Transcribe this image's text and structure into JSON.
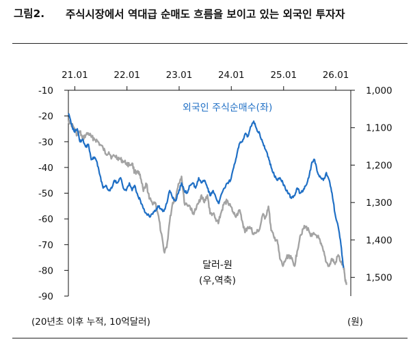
{
  "figure": {
    "label": "그림2.",
    "title": "주식시장에서 역대급 순매도 흐름을 보이고 있는 외국인 투자자",
    "left_axis_note": "(20년초 이후 누적, 10억달러)",
    "right_axis_note": "(원)"
  },
  "colors": {
    "foreign": "#1f6fc5",
    "usdkrw": "#a3a3a3",
    "axis": "#111111"
  },
  "chart_data": {
    "type": "line",
    "x_axis": {
      "position": "top",
      "tick_labels": [
        "21.01",
        "22.01",
        "23.01",
        "24.01",
        "25.01",
        "26.01"
      ],
      "range": [
        "2020-12",
        "2026-04"
      ]
    },
    "y_left": {
      "ticks": [
        -10,
        -20,
        -30,
        -40,
        -50,
        -60,
        -70,
        -80,
        -90
      ],
      "range": [
        -90,
        -10
      ]
    },
    "y_right": {
      "ticks": [
        "1,000",
        "1,100",
        "1,200",
        "1,300",
        "1,400",
        "1,500"
      ],
      "range": [
        1000,
        1550
      ],
      "inverted": true
    },
    "grid": false,
    "series": [
      {
        "name": "외국인 주식순매수(좌)",
        "axis": "left",
        "color": "#1f6fc5",
        "points": [
          [
            "2020-12-01",
            -19
          ],
          [
            "2020-12-20",
            -23
          ],
          [
            "2021-01-10",
            -26
          ],
          [
            "2021-02-01",
            -25
          ],
          [
            "2021-02-20",
            -30
          ],
          [
            "2021-03-10",
            -29
          ],
          [
            "2021-04-01",
            -32
          ],
          [
            "2021-04-20",
            -31
          ],
          [
            "2021-05-10",
            -37
          ],
          [
            "2021-06-01",
            -36
          ],
          [
            "2021-06-20",
            -38
          ],
          [
            "2021-07-10",
            -43
          ],
          [
            "2021-08-01",
            -48
          ],
          [
            "2021-08-20",
            -47
          ],
          [
            "2021-09-10",
            -49
          ],
          [
            "2021-10-01",
            -48
          ],
          [
            "2021-10-20",
            -45
          ],
          [
            "2021-11-10",
            -46
          ],
          [
            "2021-12-01",
            -44
          ],
          [
            "2021-12-20",
            -48
          ],
          [
            "2022-01-10",
            -49
          ],
          [
            "2022-02-01",
            -46
          ],
          [
            "2022-02-20",
            -49
          ],
          [
            "2022-03-10",
            -47
          ],
          [
            "2022-04-01",
            -51
          ],
          [
            "2022-04-20",
            -53
          ],
          [
            "2022-05-10",
            -56
          ],
          [
            "2022-06-01",
            -58
          ],
          [
            "2022-06-20",
            -59
          ],
          [
            "2022-07-10",
            -58
          ],
          [
            "2022-08-01",
            -57
          ],
          [
            "2022-08-20",
            -55
          ],
          [
            "2022-09-10",
            -56
          ],
          [
            "2022-10-01",
            -57
          ],
          [
            "2022-10-20",
            -54
          ],
          [
            "2022-11-10",
            -49
          ],
          [
            "2022-12-01",
            -52
          ],
          [
            "2022-12-20",
            -53
          ],
          [
            "2023-01-10",
            -50
          ],
          [
            "2023-02-01",
            -46
          ],
          [
            "2023-02-20",
            -49
          ],
          [
            "2023-03-10",
            -50
          ],
          [
            "2023-04-01",
            -47
          ],
          [
            "2023-04-20",
            -46
          ],
          [
            "2023-05-10",
            -48
          ],
          [
            "2023-06-01",
            -44
          ],
          [
            "2023-06-20",
            -46
          ],
          [
            "2023-07-10",
            -45
          ],
          [
            "2023-08-01",
            -48
          ],
          [
            "2023-08-20",
            -51
          ],
          [
            "2023-09-10",
            -49
          ],
          [
            "2023-10-01",
            -52
          ],
          [
            "2023-10-20",
            -54
          ],
          [
            "2023-11-10",
            -50
          ],
          [
            "2023-12-01",
            -48
          ],
          [
            "2023-12-20",
            -46
          ],
          [
            "2024-01-10",
            -45
          ],
          [
            "2024-02-01",
            -40
          ],
          [
            "2024-02-20",
            -36
          ],
          [
            "2024-03-10",
            -31
          ],
          [
            "2024-04-01",
            -30
          ],
          [
            "2024-04-20",
            -27
          ],
          [
            "2024-05-10",
            -28
          ],
          [
            "2024-06-01",
            -24
          ],
          [
            "2024-06-20",
            -22
          ],
          [
            "2024-07-10",
            -25
          ],
          [
            "2024-08-01",
            -27
          ],
          [
            "2024-08-20",
            -30
          ],
          [
            "2024-09-10",
            -33
          ],
          [
            "2024-10-01",
            -36
          ],
          [
            "2024-10-20",
            -40
          ],
          [
            "2024-11-10",
            -43
          ],
          [
            "2024-12-01",
            -45
          ],
          [
            "2024-12-20",
            -44
          ],
          [
            "2025-01-10",
            -46
          ],
          [
            "2025-02-01",
            -49
          ],
          [
            "2025-02-20",
            -50
          ],
          [
            "2025-03-10",
            -52
          ],
          [
            "2025-04-01",
            -51
          ],
          [
            "2025-04-20",
            -48
          ],
          [
            "2025-05-10",
            -50
          ],
          [
            "2025-06-01",
            -49
          ],
          [
            "2025-06-20",
            -47
          ],
          [
            "2025-07-10",
            -44
          ],
          [
            "2025-08-01",
            -38
          ],
          [
            "2025-08-20",
            -37
          ],
          [
            "2025-09-10",
            -42
          ],
          [
            "2025-10-01",
            -44
          ],
          [
            "2025-10-20",
            -45
          ],
          [
            "2025-11-10",
            -42
          ],
          [
            "2025-12-01",
            -45
          ],
          [
            "2025-12-20",
            -50
          ],
          [
            "2026-01-10",
            -58
          ],
          [
            "2026-02-01",
            -63
          ],
          [
            "2026-02-20",
            -70
          ],
          [
            "2026-03-10",
            -79
          ]
        ]
      },
      {
        "name": "달러-원\n(우,역축)",
        "axis": "right",
        "color": "#a3a3a3",
        "points": [
          [
            "2020-12-01",
            1080
          ],
          [
            "2020-12-20",
            1090
          ],
          [
            "2021-01-10",
            1100
          ],
          [
            "2021-02-01",
            1120
          ],
          [
            "2021-02-20",
            1110
          ],
          [
            "2021-03-10",
            1130
          ],
          [
            "2021-04-01",
            1120
          ],
          [
            "2021-04-20",
            1115
          ],
          [
            "2021-05-10",
            1125
          ],
          [
            "2021-06-01",
            1130
          ],
          [
            "2021-06-20",
            1135
          ],
          [
            "2021-07-10",
            1145
          ],
          [
            "2021-08-01",
            1155
          ],
          [
            "2021-08-20",
            1170
          ],
          [
            "2021-09-10",
            1165
          ],
          [
            "2021-10-01",
            1180
          ],
          [
            "2021-10-20",
            1175
          ],
          [
            "2021-11-10",
            1180
          ],
          [
            "2021-12-01",
            1185
          ],
          [
            "2021-12-20",
            1190
          ],
          [
            "2022-01-10",
            1195
          ],
          [
            "2022-02-01",
            1200
          ],
          [
            "2022-02-20",
            1195
          ],
          [
            "2022-03-10",
            1220
          ],
          [
            "2022-04-01",
            1215
          ],
          [
            "2022-04-20",
            1235
          ],
          [
            "2022-05-10",
            1270
          ],
          [
            "2022-06-01",
            1250
          ],
          [
            "2022-06-20",
            1290
          ],
          [
            "2022-07-10",
            1300
          ],
          [
            "2022-08-01",
            1300
          ],
          [
            "2022-08-20",
            1330
          ],
          [
            "2022-09-10",
            1380
          ],
          [
            "2022-10-01",
            1430
          ],
          [
            "2022-10-20",
            1420
          ],
          [
            "2022-11-10",
            1350
          ],
          [
            "2022-12-01",
            1300
          ],
          [
            "2022-12-20",
            1290
          ],
          [
            "2023-01-10",
            1250
          ],
          [
            "2023-02-01",
            1230
          ],
          [
            "2023-02-20",
            1300
          ],
          [
            "2023-03-10",
            1305
          ],
          [
            "2023-04-01",
            1310
          ],
          [
            "2023-04-20",
            1330
          ],
          [
            "2023-05-10",
            1320
          ],
          [
            "2023-06-01",
            1300
          ],
          [
            "2023-06-20",
            1280
          ],
          [
            "2023-07-10",
            1300
          ],
          [
            "2023-08-01",
            1280
          ],
          [
            "2023-08-20",
            1330
          ],
          [
            "2023-09-10",
            1330
          ],
          [
            "2023-10-01",
            1350
          ],
          [
            "2023-10-20",
            1350
          ],
          [
            "2023-11-10",
            1320
          ],
          [
            "2023-12-01",
            1300
          ],
          [
            "2023-12-20",
            1295
          ],
          [
            "2024-01-10",
            1310
          ],
          [
            "2024-02-01",
            1330
          ],
          [
            "2024-02-20",
            1335
          ],
          [
            "2024-03-10",
            1320
          ],
          [
            "2024-04-01",
            1350
          ],
          [
            "2024-04-20",
            1380
          ],
          [
            "2024-05-10",
            1365
          ],
          [
            "2024-06-01",
            1370
          ],
          [
            "2024-06-20",
            1385
          ],
          [
            "2024-07-10",
            1380
          ],
          [
            "2024-08-01",
            1370
          ],
          [
            "2024-08-20",
            1335
          ],
          [
            "2024-09-10",
            1340
          ],
          [
            "2024-10-01",
            1310
          ],
          [
            "2024-10-20",
            1375
          ],
          [
            "2024-11-10",
            1395
          ],
          [
            "2024-12-01",
            1400
          ],
          [
            "2024-12-20",
            1450
          ],
          [
            "2025-01-10",
            1470
          ],
          [
            "2025-02-01",
            1450
          ],
          [
            "2025-02-20",
            1440
          ],
          [
            "2025-03-10",
            1450
          ],
          [
            "2025-04-01",
            1470
          ],
          [
            "2025-04-20",
            1430
          ],
          [
            "2025-05-10",
            1390
          ],
          [
            "2025-06-01",
            1370
          ],
          [
            "2025-06-20",
            1365
          ],
          [
            "2025-07-10",
            1375
          ],
          [
            "2025-08-01",
            1390
          ],
          [
            "2025-08-20",
            1385
          ],
          [
            "2025-09-10",
            1390
          ],
          [
            "2025-10-01",
            1410
          ],
          [
            "2025-10-20",
            1430
          ],
          [
            "2025-11-10",
            1460
          ],
          [
            "2025-12-01",
            1470
          ],
          [
            "2025-12-20",
            1450
          ],
          [
            "2026-01-10",
            1465
          ],
          [
            "2026-02-01",
            1440
          ],
          [
            "2026-02-20",
            1460
          ],
          [
            "2026-03-10",
            1470
          ],
          [
            "2026-03-20",
            1500
          ],
          [
            "2026-03-31",
            1520
          ]
        ]
      }
    ]
  }
}
